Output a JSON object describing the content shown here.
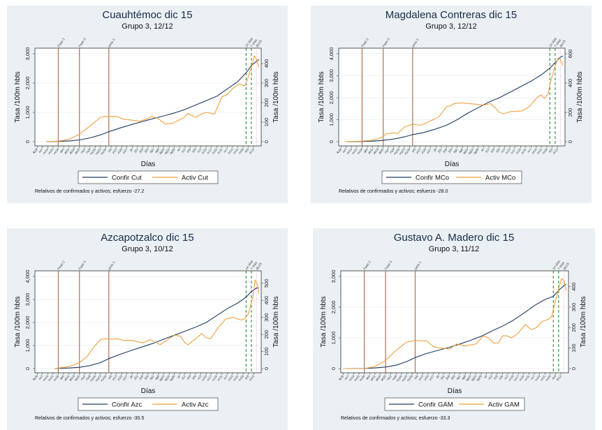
{
  "chart_data": [
    {
      "type": "line",
      "title": "Cuauhtémoc dic 15",
      "subtitle": "Grupo 3,  12/12",
      "xlabel": "Días",
      "ylabel_left": "Tasa /100m hbts",
      "ylabel_right": "Tasa /100m hbts",
      "ylim_left": [
        0,
        3000
      ],
      "yticks_left": [
        "0",
        "1,000",
        "2,000",
        "3,000"
      ],
      "ytick_values_left": [
        0,
        1000,
        2000,
        3000
      ],
      "ylim_right": [
        0,
        450
      ],
      "yticks_right": [
        "0",
        "100",
        "200",
        "300",
        "400"
      ],
      "ytick_values_right": [
        0,
        100,
        200,
        300,
        400
      ],
      "grid": true,
      "legend": "bottom",
      "note": "Relativos de confirmados y activos; esfuerzo -27.2",
      "x_days": 291,
      "x_start_offset": 0,
      "events": [
        {
          "label": "Fase 2",
          "day": 28,
          "style": "solid"
        },
        {
          "label": "Fase 3",
          "day": 56,
          "style": "solid"
        },
        {
          "label": "junio 1",
          "day": 95,
          "style": "solid"
        },
        {
          "label": "14 días",
          "day": 277,
          "style": "dashed"
        },
        {
          "label": "7 días",
          "day": 284,
          "style": "dashed"
        },
        {
          "label": "dic15",
          "day": 291,
          "style": "dotted"
        }
      ],
      "series": [
        {
          "name": "Confir Cut",
          "axis": "left",
          "x": [
            12,
            28,
            42,
            56,
            70,
            84,
            95,
            110,
            126,
            140,
            154,
            168,
            182,
            196,
            210,
            224,
            238,
            252,
            266,
            277,
            284,
            291,
            294
          ],
          "values": [
            0,
            10,
            25,
            60,
            130,
            230,
            340,
            470,
            590,
            690,
            790,
            880,
            980,
            1100,
            1250,
            1400,
            1550,
            1800,
            2050,
            2350,
            2600,
            2750,
            2800
          ]
        },
        {
          "name": "Activ Cut",
          "axis": "right",
          "x": [
            12,
            28,
            42,
            56,
            70,
            84,
            90,
            95,
            105,
            115,
            126,
            135,
            145,
            152,
            160,
            170,
            180,
            195,
            200,
            210,
            220,
            225,
            235,
            245,
            252,
            260,
            268,
            275,
            277,
            284,
            288,
            291,
            294
          ],
          "values": [
            0,
            3,
            12,
            38,
            80,
            125,
            130,
            128,
            130,
            115,
            110,
            105,
            115,
            130,
            120,
            90,
            95,
            125,
            145,
            125,
            145,
            150,
            140,
            230,
            240,
            275,
            295,
            285,
            300,
            380,
            440,
            420,
            380
          ]
        }
      ]
    },
    {
      "type": "line",
      "title": "Magdalena Contreras dic 15",
      "subtitle": "Grupo 3,  12/12",
      "xlabel": "Días",
      "ylabel_left": "Tasa /100m hbts",
      "ylabel_right": "Tasa /100m hbts",
      "ylim_left": [
        0,
        4000
      ],
      "yticks_left": [
        "0",
        "1,000",
        "2,000",
        "3,000",
        "4,000"
      ],
      "ytick_values_left": [
        0,
        1000,
        2000,
        3000,
        4000
      ],
      "ylim_right": [
        0,
        600
      ],
      "yticks_right": [
        "0",
        "200",
        "400",
        "600"
      ],
      "ytick_values_right": [
        0,
        200,
        400,
        600
      ],
      "grid": true,
      "legend": "bottom",
      "note": "Relativos de confirmados y activos; esfuerzo -28.0",
      "x_days": 291,
      "x_start_offset": 0,
      "events": [
        {
          "label": "Fase 2",
          "day": 28,
          "style": "solid"
        },
        {
          "label": "Fase 3",
          "day": 56,
          "style": "solid"
        },
        {
          "label": "junio 1",
          "day": 95,
          "style": "solid"
        },
        {
          "label": "14 días",
          "day": 277,
          "style": "dashed"
        },
        {
          "label": "7 días",
          "day": 284,
          "style": "dashed"
        },
        {
          "label": "dic15",
          "day": 291,
          "style": "dotted"
        }
      ],
      "series": [
        {
          "name": "Confir MCo",
          "axis": "left",
          "x": [
            5,
            28,
            42,
            56,
            70,
            84,
            95,
            110,
            126,
            140,
            154,
            168,
            182,
            196,
            210,
            224,
            238,
            252,
            266,
            277,
            284,
            291,
            294
          ],
          "values": [
            0,
            10,
            25,
            60,
            120,
            220,
            320,
            420,
            580,
            750,
            1000,
            1300,
            1550,
            1800,
            2000,
            2250,
            2500,
            2750,
            3050,
            3350,
            3600,
            3850,
            3900
          ]
        },
        {
          "name": "Activ MCo",
          "axis": "right",
          "x": [
            5,
            28,
            42,
            49,
            56,
            60,
            70,
            75,
            84,
            95,
            105,
            112,
            120,
            130,
            140,
            145,
            150,
            160,
            170,
            180,
            190,
            198,
            205,
            210,
            215,
            225,
            240,
            250,
            258,
            265,
            270,
            275,
            277,
            284,
            288,
            291,
            294
          ],
          "values": [
            0,
            4,
            10,
            20,
            35,
            55,
            60,
            55,
            100,
            120,
            112,
            125,
            145,
            170,
            240,
            245,
            260,
            265,
            260,
            255,
            250,
            260,
            230,
            200,
            190,
            205,
            210,
            240,
            290,
            320,
            295,
            330,
            390,
            520,
            570,
            560,
            520
          ]
        }
      ]
    },
    {
      "type": "line",
      "title": "Azcapotzalco dic 15",
      "subtitle": "Grupo 3,  10/12",
      "xlabel": "Días",
      "ylabel_left": "Tasa /100m hbts",
      "ylabel_right": "Tasa /100m hbts",
      "ylim_left": [
        0,
        4000
      ],
      "yticks_left": [
        "0",
        "1,000",
        "2,000",
        "3,000",
        "4,000"
      ],
      "ytick_values_left": [
        0,
        1000,
        2000,
        3000,
        4000
      ],
      "ylim_right": [
        0,
        540
      ],
      "yticks_right": [
        "0",
        "100",
        "200",
        "300",
        "400",
        "500"
      ],
      "ytick_values_right": [
        0,
        100,
        200,
        300,
        400,
        500
      ],
      "grid": true,
      "legend": "bottom",
      "note": "Relativos de confirmados y activos; esfuerzo -30.5",
      "x_days": 291,
      "x_start_offset": 0,
      "events": [
        {
          "label": "Fase 2",
          "day": 28,
          "style": "solid"
        },
        {
          "label": "Fase 3",
          "day": 56,
          "style": "solid"
        },
        {
          "label": "junio 1",
          "day": 95,
          "style": "solid"
        },
        {
          "label": "14 días",
          "day": 277,
          "style": "dashed"
        },
        {
          "label": "7 días",
          "day": 284,
          "style": "dashed"
        },
        {
          "label": "dic15",
          "day": 291,
          "style": "dotted"
        }
      ],
      "series": [
        {
          "name": "Confir Azc",
          "axis": "left",
          "x": [
            23,
            28,
            42,
            56,
            70,
            84,
            95,
            110,
            126,
            140,
            154,
            168,
            182,
            196,
            210,
            224,
            238,
            252,
            266,
            277,
            284,
            291,
            294
          ],
          "values": [
            0,
            10,
            25,
            55,
            130,
            260,
            430,
            620,
            800,
            950,
            1100,
            1280,
            1450,
            1620,
            1800,
            2000,
            2300,
            2600,
            2850,
            3100,
            3350,
            3500,
            3500
          ]
        },
        {
          "name": "Activ Azc",
          "axis": "right",
          "x": [
            23,
            28,
            42,
            56,
            66,
            75,
            84,
            90,
            95,
            105,
            115,
            126,
            140,
            150,
            163,
            175,
            182,
            190,
            196,
            200,
            210,
            218,
            224,
            230,
            240,
            250,
            260,
            270,
            275,
            280,
            286,
            289,
            292,
            294
          ],
          "values": [
            0,
            3,
            12,
            35,
            70,
            125,
            170,
            175,
            172,
            175,
            165,
            165,
            150,
            170,
            140,
            175,
            195,
            190,
            150,
            140,
            175,
            205,
            180,
            175,
            240,
            290,
            300,
            285,
            290,
            320,
            420,
            520,
            490,
            440
          ]
        }
      ]
    },
    {
      "type": "line",
      "title": "Gustavo A. Madero dic 15",
      "subtitle": "Grupo 3,  11/12",
      "xlabel": "Días",
      "ylabel_left": "Tasa /100m hbts",
      "ylabel_right": "Tasa /100m hbts",
      "ylim_left": [
        0,
        3000
      ],
      "yticks_left": [
        "0",
        "1,000",
        "2,000",
        "3,000"
      ],
      "ytick_values_left": [
        0,
        1000,
        2000,
        3000
      ],
      "ylim_right": [
        0,
        450
      ],
      "yticks_right": [
        "0",
        "100",
        "200",
        "300",
        "400"
      ],
      "ytick_values_right": [
        0,
        100,
        200,
        300,
        400
      ],
      "grid": true,
      "legend": "bottom",
      "note": "Relativos de confirmados y activos; esfuerzo -33.3",
      "x_days": 291,
      "x_start_offset": 0,
      "events": [
        {
          "label": "Fase 2",
          "day": 28,
          "style": "solid"
        },
        {
          "label": "Fase 3",
          "day": 56,
          "style": "solid"
        },
        {
          "label": "junio 1",
          "day": 95,
          "style": "solid"
        },
        {
          "label": "14 días",
          "day": 277,
          "style": "dashed"
        },
        {
          "label": "7 días",
          "day": 284,
          "style": "dashed"
        },
        {
          "label": "dic15",
          "day": 291,
          "style": "dotted"
        }
      ],
      "series": [
        {
          "name": "Confir GAM",
          "axis": "left",
          "x": [
            0,
            28,
            42,
            56,
            70,
            84,
            95,
            110,
            126,
            140,
            154,
            168,
            182,
            196,
            210,
            224,
            238,
            252,
            266,
            277,
            284,
            291,
            294
          ],
          "values": [
            0,
            5,
            20,
            50,
            110,
            230,
            360,
            490,
            600,
            690,
            800,
            920,
            1050,
            1220,
            1380,
            1570,
            1800,
            2050,
            2250,
            2350,
            2550,
            2700,
            2750
          ]
        },
        {
          "name": "Activ GAM",
          "axis": "right",
          "x": [
            0,
            28,
            42,
            56,
            70,
            84,
            95,
            110,
            120,
            130,
            140,
            150,
            160,
            175,
            185,
            192,
            198,
            205,
            210,
            216,
            222,
            230,
            240,
            248,
            255,
            262,
            270,
            275,
            277,
            284,
            288,
            291,
            294
          ],
          "values": [
            0,
            0,
            10,
            40,
            90,
            130,
            137,
            135,
            105,
            100,
            95,
            120,
            110,
            120,
            160,
            150,
            125,
            125,
            160,
            160,
            150,
            170,
            215,
            190,
            200,
            230,
            240,
            255,
            290,
            390,
            440,
            430,
            380
          ]
        }
      ]
    }
  ],
  "x_tick_labels": [
    "fb29",
    "mr7",
    "mr14",
    "mr21",
    "mr28",
    "ab4",
    "ab11",
    "ab18",
    "ab25",
    "my2",
    "my9",
    "my16",
    "my23",
    "my30",
    "jn6",
    "jn13",
    "jn20",
    "jn27",
    "jl4",
    "jl11",
    "jl18",
    "jl25",
    "ag1",
    "ag8",
    "ag15",
    "ag22",
    "ag29",
    "s5",
    "s12",
    "s19",
    "s26",
    "oc3",
    "oc10",
    "oc17",
    "oc24",
    "oc31",
    "nv7",
    "nv14",
    "nv21",
    "nv28",
    "dc5",
    "dc12"
  ],
  "colors": {
    "confirmed": "#1f3b63",
    "active": "#f0a040",
    "event_solid": "#a9705a",
    "event_dashed": "#2e8b3a",
    "event_dotted": "#d98fd0",
    "panel_bg": "#eaf0f3",
    "plot_bg": "#ffffff",
    "grid": "#e9eef2"
  }
}
